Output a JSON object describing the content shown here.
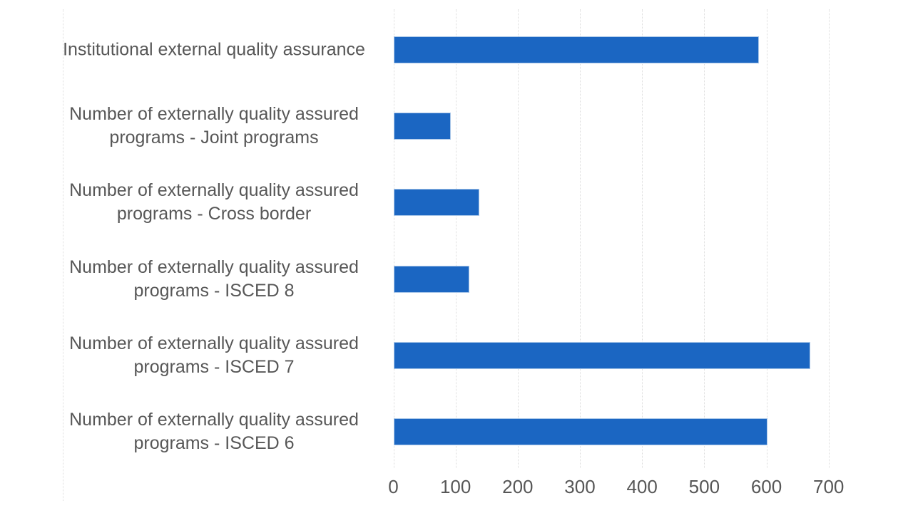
{
  "chart_data": {
    "type": "bar",
    "orientation": "horizontal",
    "title": "",
    "xlabel": "",
    "ylabel": "",
    "categories": [
      "Institutional external quality assurance",
      "Number of externally quality assured programs - Joint programs",
      "Number of externally quality assured programs - Cross border",
      "Number of externally quality assured programs - ISCED 8",
      "Number of externally quality assured programs - ISCED 7",
      "Number of externally quality assured programs - ISCED 6"
    ],
    "values": [
      588,
      92,
      138,
      122,
      670,
      602
    ],
    "xlim": [
      0,
      700
    ],
    "xticks": [
      0,
      100,
      200,
      300,
      400,
      500,
      600,
      700
    ],
    "grid": true,
    "legend": false,
    "colors": {
      "bar_fill": "#1b66c2",
      "bar_border": "#a8c6e8",
      "gridline": "#dcdcdc",
      "axis_text": "#575757",
      "background": "#ffffff"
    }
  }
}
